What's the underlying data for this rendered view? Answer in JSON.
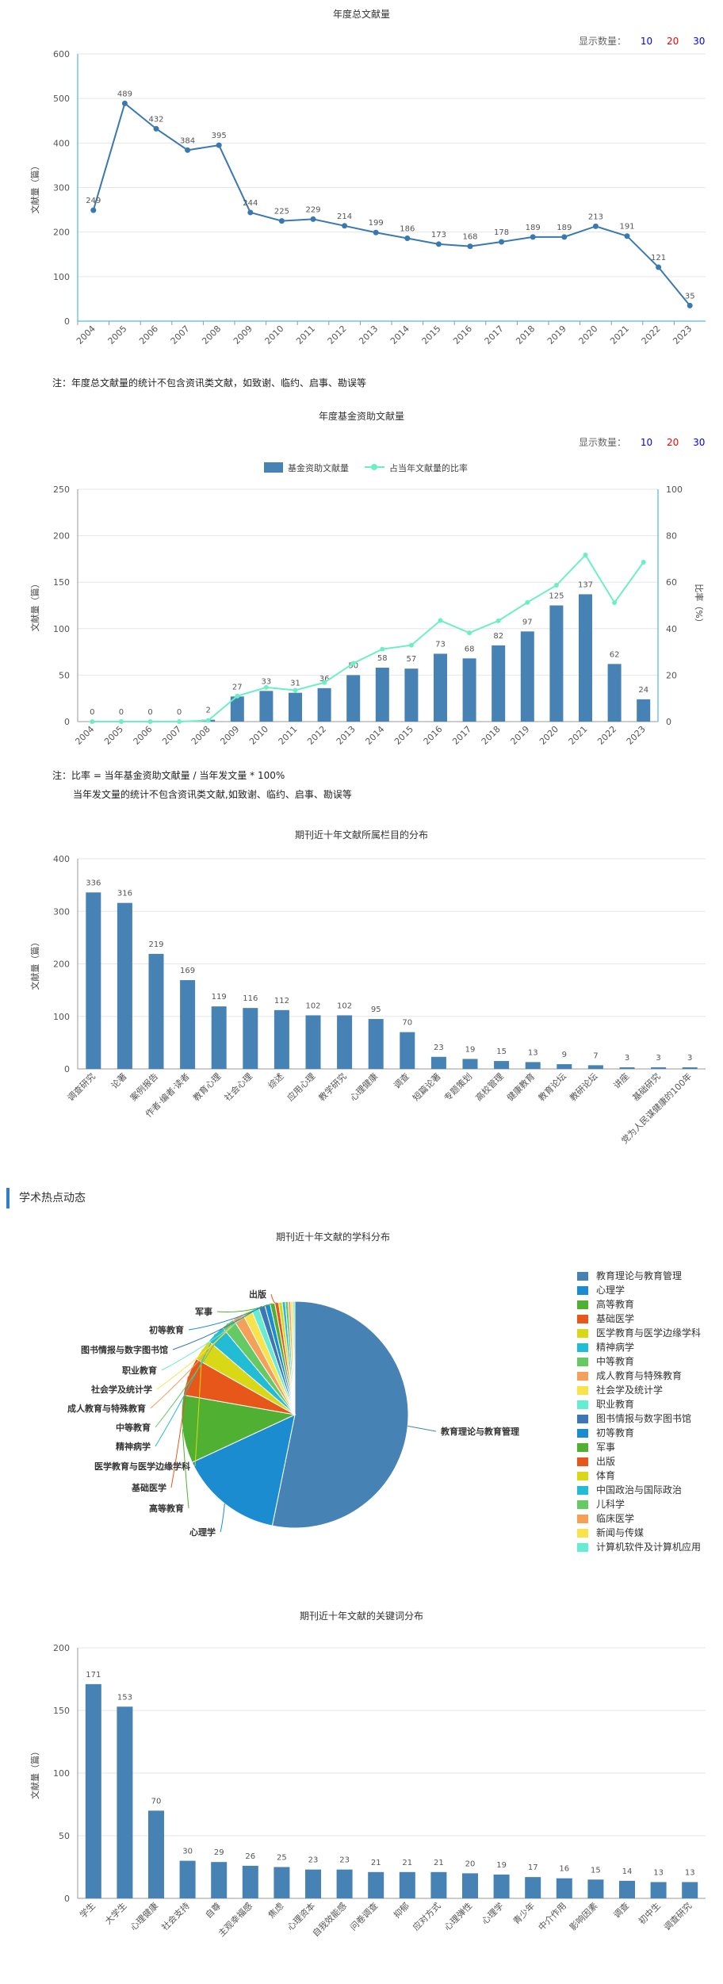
{
  "display_count": {
    "label": "显示数量：",
    "options": [
      "10",
      "20",
      "30"
    ],
    "colors": [
      "#0000ff",
      "#ff0000",
      "#0000ff"
    ]
  },
  "annual": {
    "title": "年度总文献量",
    "ylabel": "文献量（篇）",
    "note": "注：年度总文献量的统计不包含资讯类文献，如致谢、临约、启事、勘误等"
  },
  "fund": {
    "title": "年度基金资助文献量",
    "legend_bar": "基金资助文献量",
    "legend_line": "占当年文献量的比率",
    "ylabel_left": "文献量（篇）",
    "ylabel_right": "比率（%）",
    "note_line1": "注：比率 = 当年基金资助文献量 / 当年发文量 * 100%",
    "note_line2": "当年发文量的统计不包含资讯类文献,如致谢、临约、启事、勘误等"
  },
  "column": {
    "title": "期刊近十年文献所属栏目的分布",
    "ylabel": "文献量（篇）"
  },
  "section": {
    "title": "学术热点动态"
  },
  "subject": {
    "title": "期刊近十年文献的学科分布"
  },
  "keyword": {
    "title": "期刊近十年文献的关键词分布",
    "ylabel": "文献量（篇）"
  },
  "colors": {
    "bar": "#4682b4",
    "line": "#3a78b0",
    "ratio": "#6cefc5",
    "axis_accent": "#28a8d8"
  },
  "chart_data": [
    {
      "type": "line",
      "title": "年度总文献量",
      "ylabel": "文献量（篇）",
      "ylim": [
        0,
        600
      ],
      "yticks": [
        0,
        100,
        200,
        300,
        400,
        500,
        600
      ],
      "x": [
        "2004",
        "2005",
        "2006",
        "2007",
        "2008",
        "2009",
        "2010",
        "2011",
        "2012",
        "2013",
        "2014",
        "2015",
        "2016",
        "2017",
        "2018",
        "2019",
        "2020",
        "2021",
        "2022",
        "2023"
      ],
      "values": [
        249,
        489,
        432,
        384,
        395,
        244,
        225,
        229,
        214,
        199,
        186,
        173,
        168,
        178,
        189,
        189,
        213,
        191,
        121,
        35
      ]
    },
    {
      "type": "bar",
      "title": "年度基金资助文献量",
      "ylim": [
        0,
        250
      ],
      "yticks": [
        0,
        50,
        100,
        150,
        200,
        250
      ],
      "y2lim": [
        0,
        100
      ],
      "y2ticks": [
        0,
        20,
        40,
        60,
        80,
        100
      ],
      "x": [
        "2004",
        "2005",
        "2006",
        "2007",
        "2008",
        "2009",
        "2010",
        "2011",
        "2012",
        "2013",
        "2014",
        "2015",
        "2016",
        "2017",
        "2018",
        "2019",
        "2020",
        "2021",
        "2022",
        "2023"
      ],
      "series": [
        {
          "name": "基金资助文献量",
          "values": [
            0,
            0,
            0,
            0,
            2,
            27,
            33,
            31,
            36,
            50,
            58,
            57,
            73,
            68,
            82,
            97,
            125,
            137,
            62,
            24
          ]
        },
        {
          "name": "占当年文献量的比率",
          "values": [
            0,
            0,
            0,
            0,
            0.5,
            11,
            14.7,
            13.5,
            16.8,
            25.1,
            31.2,
            32.9,
            43.5,
            38.2,
            43.4,
            51.3,
            58.7,
            71.7,
            51.2,
            68.6
          ]
        }
      ]
    },
    {
      "type": "bar",
      "title": "期刊近十年文献所属栏目的分布",
      "ylabel": "文献量（篇）",
      "ylim": [
        0,
        400
      ],
      "yticks": [
        0,
        100,
        200,
        300,
        400
      ],
      "categories": [
        "调查研究",
        "论著",
        "案例报告",
        "作者·编者·读者",
        "教育心理",
        "社会心理",
        "综述",
        "应用心理",
        "教学研究",
        "心理健康",
        "调查",
        "短篇论著",
        "专题策划",
        "高校管理",
        "健康教育",
        "教育论坛",
        "教研论坛",
        "讲座",
        "基础研究",
        "党为人民谋健康的100年"
      ],
      "values": [
        336,
        316,
        219,
        169,
        119,
        116,
        112,
        102,
        102,
        95,
        70,
        23,
        19,
        15,
        13,
        9,
        7,
        3,
        3,
        3
      ]
    },
    {
      "type": "pie",
      "title": "期刊近十年文献的学科分布",
      "categories": [
        "教育理论与教育管理",
        "心理学",
        "高等教育",
        "基础医学",
        "医学教育与医学边缘学科",
        "精神病学",
        "中等教育",
        "成人教育与特殊教育",
        "社会学及统计学",
        "职业教育",
        "图书情报与数字图书馆",
        "初等教育",
        "军事",
        "出版",
        "体育",
        "中国政治与国际政治",
        "儿科学",
        "临床医学",
        "新闻与传媒",
        "计算机软件及计算机应用"
      ],
      "values": [
        1180,
        330,
        215,
        120,
        68,
        60,
        42,
        34,
        30,
        24,
        20,
        17,
        15,
        12,
        11,
        10,
        9,
        8,
        7,
        6
      ],
      "colors": [
        "#4682b4",
        "#1a8ccf",
        "#4fb032",
        "#e8571a",
        "#d8d816",
        "#22bcd4",
        "#65c964",
        "#f5a05a",
        "#f8e34a",
        "#66ecd0",
        "#3d76b4",
        "#1a8ccf",
        "#4fb032",
        "#e8571a",
        "#d8d816",
        "#22bcd4",
        "#65c964",
        "#f5a05a",
        "#f8e34a",
        "#66ecd0"
      ],
      "outer_labels": [
        "教育理论与教育管理",
        "心理学",
        "高等教育",
        "基础医学",
        "医学教育与医学边缘学科",
        "精神病学",
        "中等教育",
        "成人教育与特殊教育",
        "社会学及统计学",
        "职业教育",
        "图书情报与数字图书馆",
        "初等教育",
        "军事",
        "出版"
      ]
    },
    {
      "type": "bar",
      "title": "期刊近十年文献的关键词分布",
      "ylabel": "文献量（篇）",
      "ylim": [
        0,
        200
      ],
      "yticks": [
        0,
        50,
        100,
        150,
        200
      ],
      "categories": [
        "学生",
        "大学生",
        "心理健康",
        "社会支持",
        "自尊",
        "主观幸福感",
        "焦虑",
        "心理资本",
        "自我效能感",
        "问卷调查",
        "抑郁",
        "应对方式",
        "心理弹性",
        "心理学",
        "青少年",
        "中介作用",
        "影响因素",
        "调查",
        "初中生",
        "调查研究"
      ],
      "values": [
        171,
        153,
        70,
        30,
        29,
        26,
        25,
        23,
        23,
        21,
        21,
        21,
        20,
        19,
        17,
        16,
        15,
        14,
        13,
        13
      ]
    }
  ]
}
